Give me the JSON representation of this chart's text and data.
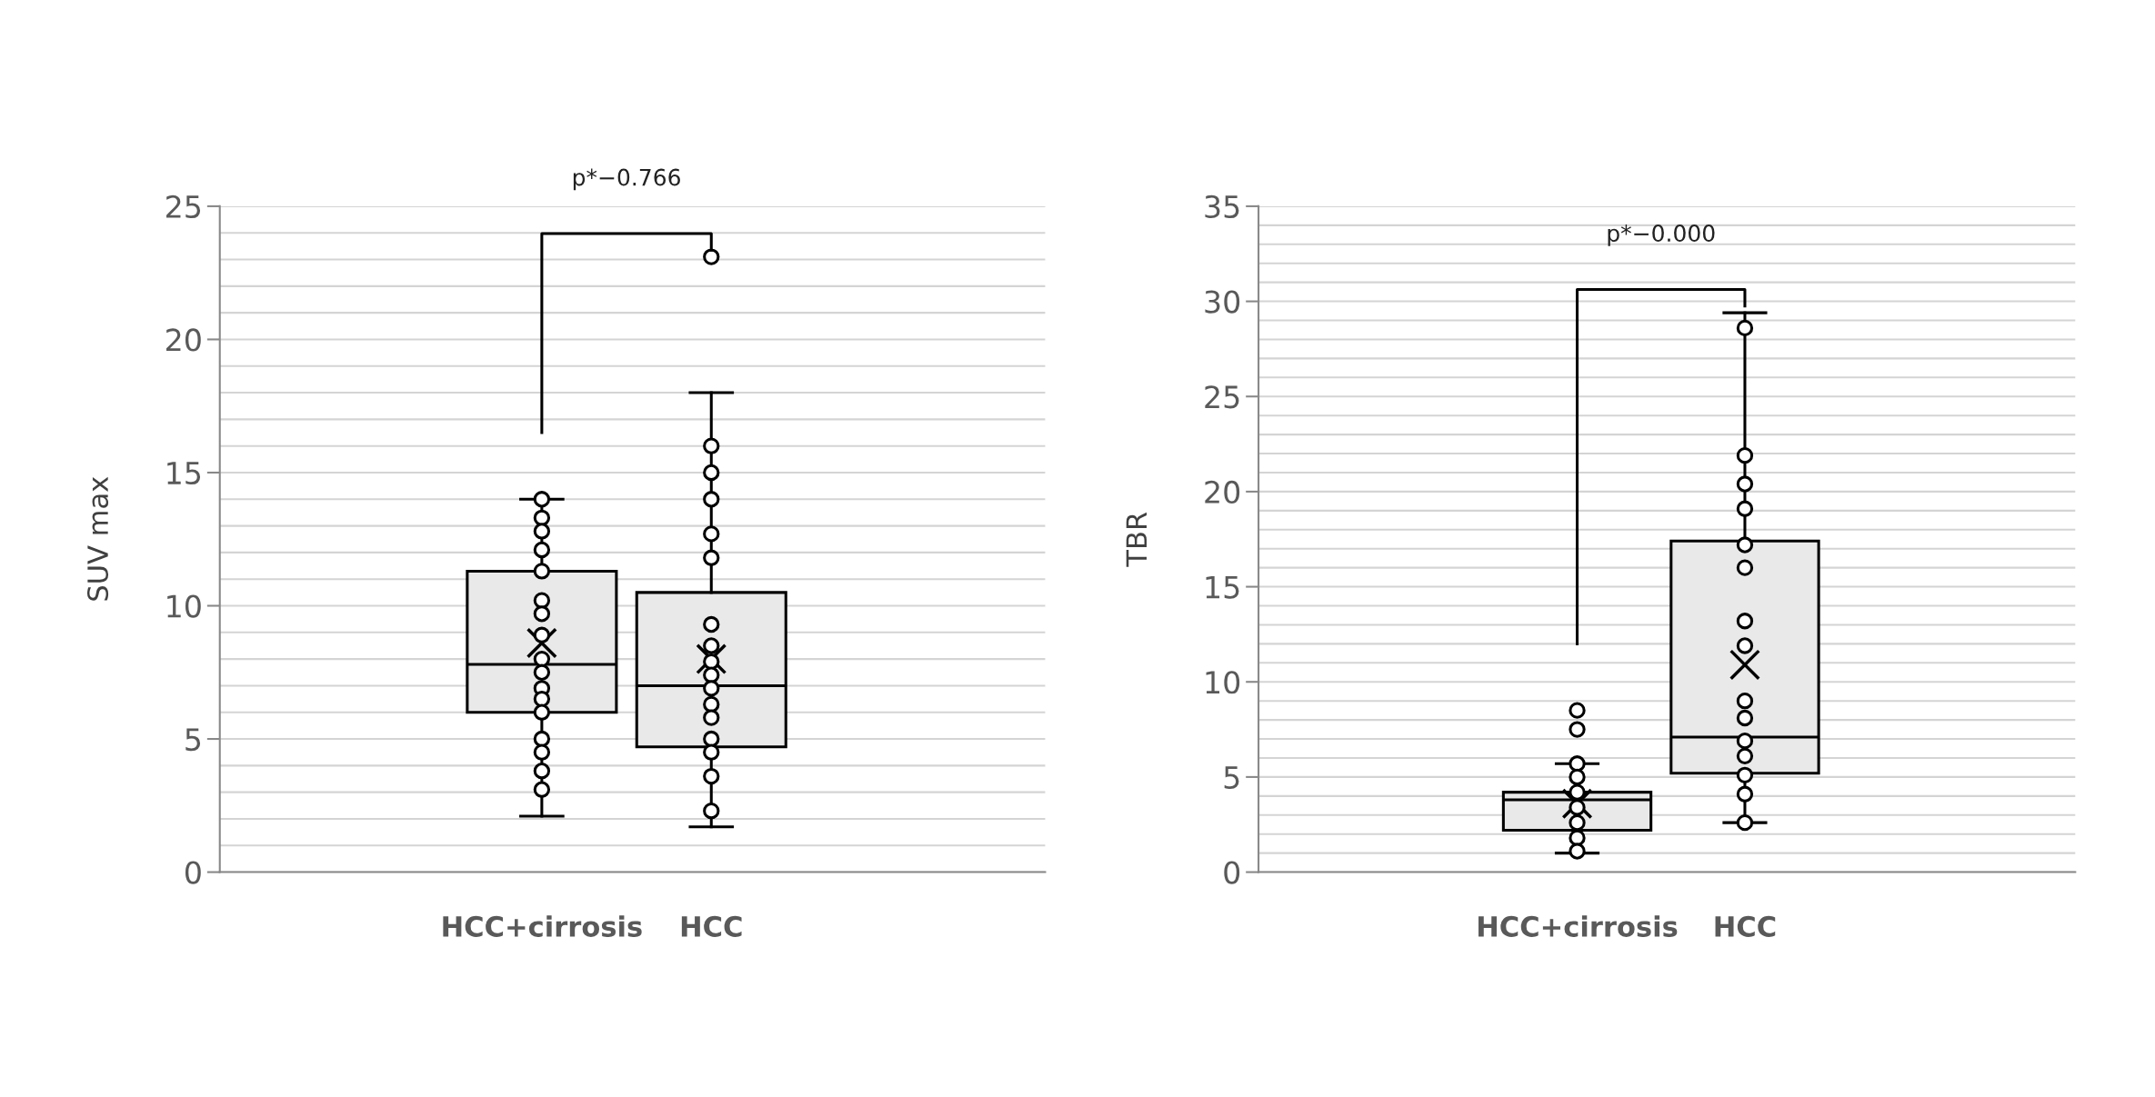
{
  "chart_data": [
    {
      "type": "box",
      "categories": [
        "HCC+cirrosis",
        "HCC"
      ],
      "ylabel": "SUV max",
      "ylim": [
        0,
        25
      ],
      "yticks": [
        0,
        {
          "value": 1,
          "label": null
        },
        {
          "value": 2,
          "label": null
        },
        {
          "value": 3,
          "label": null
        },
        {
          "value": 4,
          "label": null
        },
        5,
        {
          "value": 6,
          "label": null
        },
        {
          "value": 7,
          "label": null
        },
        {
          "value": 8,
          "label": null
        },
        {
          "value": 9,
          "label": null
        },
        10,
        {
          "value": 11,
          "label": null
        },
        {
          "value": 12,
          "label": null
        },
        {
          "value": 13,
          "label": null
        },
        {
          "value": 14,
          "label": null
        },
        15,
        {
          "value": 16,
          "label": null
        },
        {
          "value": 17,
          "label": null
        },
        {
          "value": 18,
          "label": null
        },
        {
          "value": 19,
          "label": null
        },
        20,
        {
          "value": 21,
          "label": null
        },
        {
          "value": 22,
          "label": null
        },
        {
          "value": 23,
          "label": null
        },
        {
          "value": 24,
          "label": null
        },
        25
      ],
      "grid": "y",
      "annotations": [
        "p*−0.766"
      ],
      "series": [
        {
          "type": "box",
          "color": "#e9e9e9",
          "boxes": [
            {
              "low": 2.1,
              "q1": 6.0,
              "median": 7.8,
              "q3": 11.3,
              "high": 14.0,
              "mean": 8.6
            },
            {
              "low": 1.7,
              "q1": 4.7,
              "median": 7.0,
              "q3": 10.5,
              "high": 18.0,
              "mean": 8.0,
              "outliers": [
                23.1
              ]
            }
          ]
        },
        {
          "type": "scatter",
          "color": "#000000",
          "marker": "circle",
          "x": [
            "HCC+cirrosis",
            "HCC+cirrosis",
            "HCC+cirrosis",
            "HCC+cirrosis",
            "HCC+cirrosis",
            "HCC+cirrosis",
            "HCC+cirrosis",
            "HCC+cirrosis",
            "HCC+cirrosis",
            "HCC+cirrosis",
            "HCC+cirrosis",
            "HCC+cirrosis",
            "HCC+cirrosis",
            "HCC+cirrosis",
            "HCC+cirrosis",
            "HCC+cirrosis",
            "HCC+cirrosis",
            "HCC",
            "HCC",
            "HCC",
            "HCC",
            "HCC",
            "HCC",
            "HCC",
            "HCC",
            "HCC",
            "HCC",
            "HCC",
            "HCC",
            "HCC",
            "HCC",
            "HCC",
            "HCC"
          ],
          "values": [
            14.0,
            13.3,
            12.8,
            12.1,
            11.3,
            10.2,
            9.7,
            8.9,
            8.0,
            7.5,
            6.9,
            6.5,
            6.0,
            5.0,
            4.5,
            3.8,
            3.1,
            16.0,
            15.0,
            14.0,
            12.7,
            11.8,
            9.3,
            8.5,
            7.9,
            7.4,
            6.9,
            6.3,
            5.8,
            5.0,
            4.5,
            3.6,
            2.3
          ]
        }
      ]
    },
    {
      "type": "box",
      "categories": [
        "HCC+cirrosis",
        "HCC"
      ],
      "ylabel": "TBR",
      "ylim": [
        0,
        35
      ],
      "yticks": [
        0,
        {
          "value": 1,
          "label": null
        },
        {
          "value": 2,
          "label": null
        },
        {
          "value": 3,
          "label": null
        },
        {
          "value": 4,
          "label": null
        },
        5,
        {
          "value": 6,
          "label": null
        },
        {
          "value": 7,
          "label": null
        },
        {
          "value": 8,
          "label": null
        },
        {
          "value": 9,
          "label": null
        },
        10,
        {
          "value": 11,
          "label": null
        },
        {
          "value": 12,
          "label": null
        },
        {
          "value": 13,
          "label": null
        },
        {
          "value": 14,
          "label": null
        },
        15,
        {
          "value": 16,
          "label": null
        },
        {
          "value": 17,
          "label": null
        },
        {
          "value": 18,
          "label": null
        },
        {
          "value": 19,
          "label": null
        },
        20,
        {
          "value": 21,
          "label": null
        },
        {
          "value": 22,
          "label": null
        },
        {
          "value": 23,
          "label": null
        },
        {
          "value": 24,
          "label": null
        },
        25,
        {
          "value": 26,
          "label": null
        },
        {
          "value": 27,
          "label": null
        },
        {
          "value": 28,
          "label": null
        },
        {
          "value": 29,
          "label": null
        },
        30,
        {
          "value": 31,
          "label": null
        },
        {
          "value": 32,
          "label": null
        },
        {
          "value": 33,
          "label": null
        },
        {
          "value": 34,
          "label": null
        },
        35
      ],
      "grid": "y",
      "annotations": [
        "p*−0.000"
      ],
      "series": [
        {
          "type": "box",
          "color": "#e9e9e9",
          "boxes": [
            {
              "low": 1.0,
              "q1": 2.2,
              "median": 3.8,
              "q3": 4.2,
              "high": 5.7,
              "mean": 3.6,
              "outliers": [
                8.5,
                7.5
              ]
            },
            {
              "low": 2.6,
              "q1": 5.2,
              "median": 7.1,
              "q3": 17.4,
              "high": 29.4,
              "mean": 10.9
            }
          ]
        },
        {
          "type": "scatter",
          "color": "#000000",
          "marker": "circle",
          "x": [
            "HCC+cirrosis",
            "HCC+cirrosis",
            "HCC+cirrosis",
            "HCC+cirrosis",
            "HCC+cirrosis",
            "HCC+cirrosis",
            "HCC+cirrosis",
            "HCC",
            "HCC",
            "HCC",
            "HCC",
            "HCC",
            "HCC",
            "HCC",
            "HCC",
            "HCC",
            "HCC",
            "HCC",
            "HCC",
            "HCC",
            "HCC",
            "HCC"
          ],
          "values": [
            5.7,
            5.0,
            4.2,
            3.4,
            2.6,
            1.8,
            1.1,
            28.6,
            21.9,
            20.4,
            19.1,
            17.2,
            16.0,
            13.2,
            11.9,
            9.0,
            8.1,
            6.9,
            6.1,
            5.1,
            4.1,
            2.6
          ]
        }
      ]
    }
  ]
}
